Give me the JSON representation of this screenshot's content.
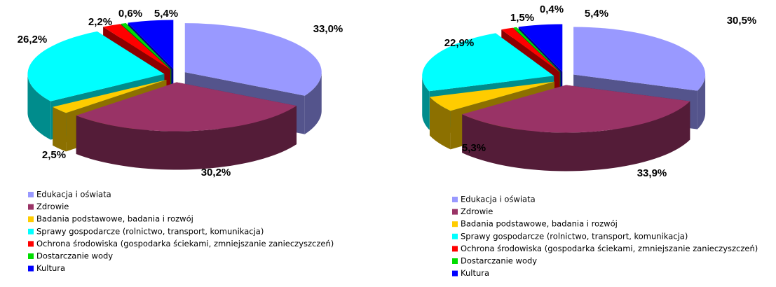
{
  "chart_data": [
    {
      "type": "pie",
      "categories": [
        "Edukacja i oświata",
        "Zdrowie",
        "Badania podstawowe, badania i rozwój",
        "Sprawy gospodarcze (rolnictwo, transport, komunikacja)",
        "Ochrona środowiska (gospodarka ściekami, zmniejszanie zanieczyszczeń)",
        "Dostarczanie wody",
        "Kultura"
      ],
      "values": [
        33.0,
        30.2,
        2.5,
        26.2,
        2.2,
        0.6,
        5.4
      ],
      "value_labels": [
        "33,0%",
        "30,2%",
        "2,5%",
        "26,2%",
        "2,2%",
        "0,6%",
        "5,4%"
      ],
      "colors": [
        "#9999ff",
        "#993366",
        "#ffcc00",
        "#00ffff",
        "#ff0000",
        "#00dd00",
        "#0000ff"
      ]
    },
    {
      "type": "pie",
      "categories": [
        "Edukacja i oświata",
        "Zdrowie",
        "Badania podstawowe, badania i rozwój",
        "Sprawy gospodarcze (rolnictwo, transport, komunikacja)",
        "Ochrona środowiska (gospodarka ściekami, zmniejszanie zanieczyszczeń)",
        "Dostarczanie wody",
        "Kultura"
      ],
      "values": [
        30.5,
        33.9,
        5.3,
        22.9,
        1.5,
        0.4,
        5.4
      ],
      "value_labels": [
        "30,5%",
        "33,9%",
        "5,3%",
        "22,9%",
        "1,5%",
        "0,4%",
        "5,4%"
      ],
      "colors": [
        "#9999ff",
        "#993366",
        "#ffcc00",
        "#00ffff",
        "#ff0000",
        "#00dd00",
        "#0000ff"
      ]
    }
  ]
}
